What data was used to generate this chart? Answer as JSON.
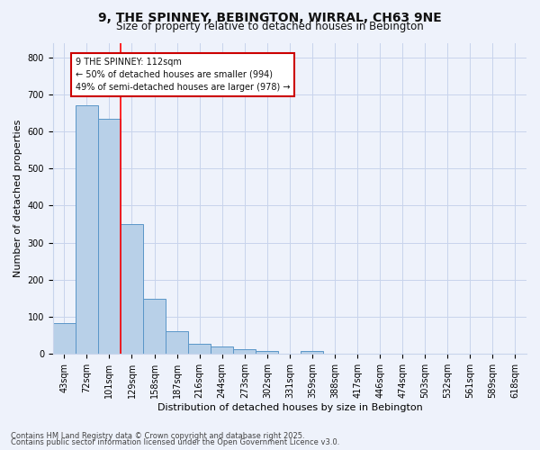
{
  "title": "9, THE SPINNEY, BEBINGTON, WIRRAL, CH63 9NE",
  "subtitle": "Size of property relative to detached houses in Bebington",
  "xlabel": "Distribution of detached houses by size in Bebington",
  "ylabel": "Number of detached properties",
  "bin_labels": [
    "43sqm",
    "72sqm",
    "101sqm",
    "129sqm",
    "158sqm",
    "187sqm",
    "216sqm",
    "244sqm",
    "273sqm",
    "302sqm",
    "331sqm",
    "359sqm",
    "388sqm",
    "417sqm",
    "446sqm",
    "474sqm",
    "503sqm",
    "532sqm",
    "561sqm",
    "589sqm",
    "618sqm"
  ],
  "bar_values": [
    82,
    670,
    635,
    350,
    148,
    60,
    27,
    18,
    12,
    6,
    0,
    8,
    0,
    0,
    0,
    0,
    0,
    0,
    0,
    0,
    0
  ],
  "bar_color": "#b8d0e8",
  "bar_edge_color": "#5a96c8",
  "red_line_x": 2.5,
  "annotation_text": "9 THE SPINNEY: 112sqm\n← 50% of detached houses are smaller (994)\n49% of semi-detached houses are larger (978) →",
  "annotation_box_facecolor": "#ffffff",
  "annotation_box_edge": "#cc0000",
  "footnote1": "Contains HM Land Registry data © Crown copyright and database right 2025.",
  "footnote2": "Contains public sector information licensed under the Open Government Licence v3.0.",
  "bg_color": "#eef2fb",
  "plot_bg_color": "#eef2fb",
  "ylim": [
    0,
    840
  ],
  "yticks": [
    0,
    100,
    200,
    300,
    400,
    500,
    600,
    700,
    800
  ],
  "grid_color": "#c8d4ec",
  "title_fontsize": 10,
  "subtitle_fontsize": 8.5,
  "tick_fontsize": 7,
  "axis_label_fontsize": 8,
  "footnote_fontsize": 6
}
